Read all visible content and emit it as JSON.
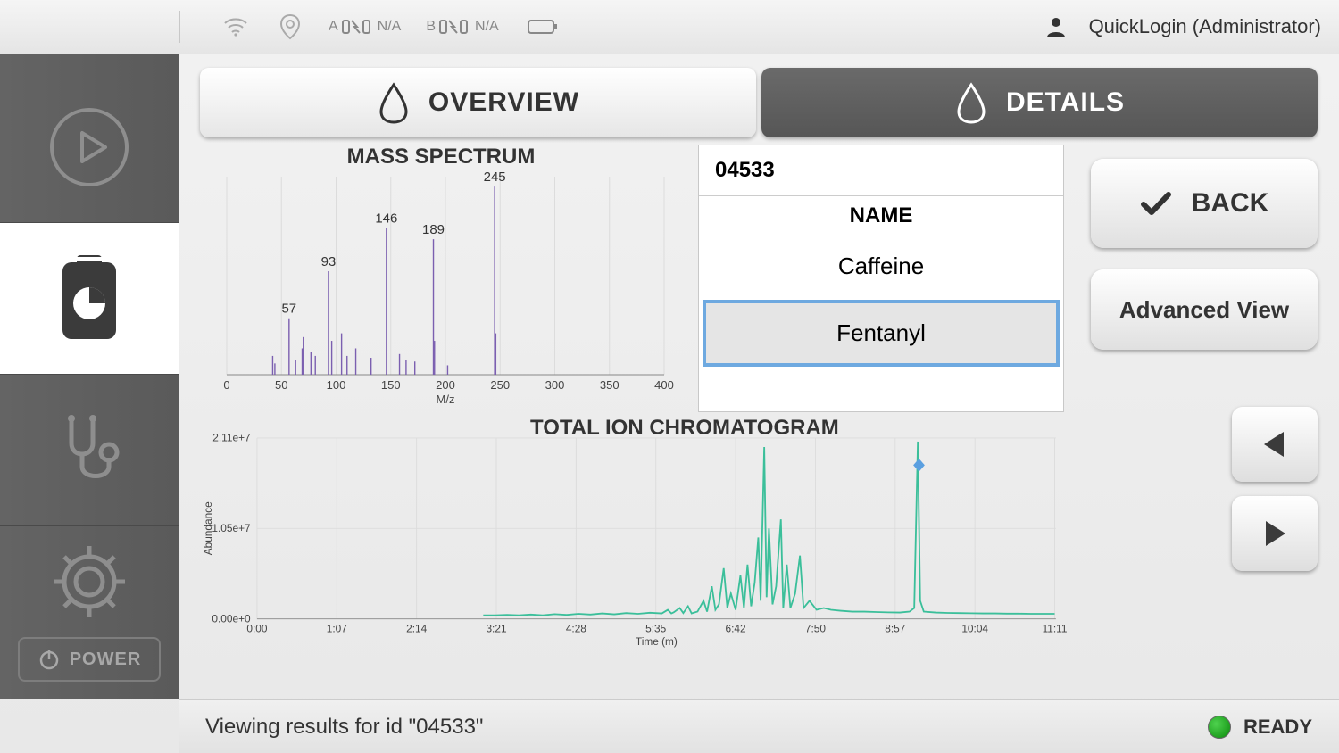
{
  "topbar": {
    "battery_a_letter": "A",
    "battery_a_value": "N/A",
    "battery_b_letter": "B",
    "battery_b_value": "N/A",
    "user_label": "QuickLogin (Administrator)"
  },
  "sidebar": {
    "power_label": "POWER"
  },
  "tabs": {
    "overview": "OVERVIEW",
    "details": "DETAILS"
  },
  "results": {
    "id": "04533",
    "name_header": "NAME",
    "rows": [
      "Caffeine",
      "Fentanyl"
    ],
    "selected_index": 1
  },
  "buttons": {
    "back": "BACK",
    "advanced": "Advanced View"
  },
  "footer": {
    "message": "Viewing results for id \"04533\"",
    "status": "READY",
    "status_color": "#1ea81e"
  },
  "mass_spectrum": {
    "title": "MASS SPECTRUM",
    "xlabel": "M/z",
    "xlim": [
      0,
      400
    ],
    "xtick_step": 50,
    "xticks": [
      0,
      50,
      100,
      150,
      200,
      250,
      300,
      350,
      400
    ],
    "line_color": "#7b5fb0",
    "label_fontsize": 15,
    "axis_fontsize": 13,
    "background_color": "#ffffff00",
    "grid_color": "#dcdcdc",
    "peaks": [
      {
        "mz": 42,
        "rel": 0.1
      },
      {
        "mz": 44,
        "rel": 0.06
      },
      {
        "mz": 57,
        "rel": 0.3,
        "label": "57"
      },
      {
        "mz": 63,
        "rel": 0.08
      },
      {
        "mz": 69,
        "rel": 0.14
      },
      {
        "mz": 70,
        "rel": 0.2
      },
      {
        "mz": 77,
        "rel": 0.12
      },
      {
        "mz": 81,
        "rel": 0.1
      },
      {
        "mz": 93,
        "rel": 0.55,
        "label": "93"
      },
      {
        "mz": 96,
        "rel": 0.18
      },
      {
        "mz": 105,
        "rel": 0.22
      },
      {
        "mz": 110,
        "rel": 0.1
      },
      {
        "mz": 118,
        "rel": 0.14
      },
      {
        "mz": 132,
        "rel": 0.09
      },
      {
        "mz": 146,
        "rel": 0.78,
        "label": "146"
      },
      {
        "mz": 158,
        "rel": 0.11
      },
      {
        "mz": 164,
        "rel": 0.08
      },
      {
        "mz": 172,
        "rel": 0.07
      },
      {
        "mz": 189,
        "rel": 0.72,
        "label": "189"
      },
      {
        "mz": 190,
        "rel": 0.18
      },
      {
        "mz": 202,
        "rel": 0.05
      },
      {
        "mz": 245,
        "rel": 1.0,
        "label": "245"
      },
      {
        "mz": 246,
        "rel": 0.22
      }
    ]
  },
  "tic": {
    "title": "TOTAL ION CHROMATOGRAM",
    "xlabel": "Time (m)",
    "ylabel": "Abundance",
    "line_color": "#3bbf9a",
    "marker_color": "#5a9fe0",
    "background_color": "#ffffff00",
    "grid_color": "#dcdcdc",
    "ymax_label": "2.11e+7",
    "ymid_label": "1.05e+7",
    "ymin_label": "0.00e+0",
    "ymax": 21100000.0,
    "xlim_sec": [
      0,
      671
    ],
    "xticks": [
      {
        "sec": 0,
        "label": "0:00"
      },
      {
        "sec": 67,
        "label": "1:07"
      },
      {
        "sec": 134,
        "label": "2:14"
      },
      {
        "sec": 201,
        "label": "3:21"
      },
      {
        "sec": 268,
        "label": "4:28"
      },
      {
        "sec": 335,
        "label": "5:35"
      },
      {
        "sec": 402,
        "label": "6:42"
      },
      {
        "sec": 469,
        "label": "7:50"
      },
      {
        "sec": 536,
        "label": "8:57"
      },
      {
        "sec": 603,
        "label": "10:04"
      },
      {
        "sec": 670,
        "label": "11:11"
      }
    ],
    "marker_sec": 556,
    "series": [
      [
        190,
        0.02
      ],
      [
        200,
        0.02
      ],
      [
        210,
        0.022
      ],
      [
        220,
        0.02
      ],
      [
        230,
        0.024
      ],
      [
        240,
        0.02
      ],
      [
        250,
        0.026
      ],
      [
        260,
        0.022
      ],
      [
        270,
        0.028
      ],
      [
        280,
        0.024
      ],
      [
        290,
        0.03
      ],
      [
        300,
        0.025
      ],
      [
        310,
        0.032
      ],
      [
        320,
        0.028
      ],
      [
        330,
        0.034
      ],
      [
        340,
        0.03
      ],
      [
        345,
        0.05
      ],
      [
        348,
        0.03
      ],
      [
        350,
        0.036
      ],
      [
        355,
        0.06
      ],
      [
        358,
        0.032
      ],
      [
        362,
        0.07
      ],
      [
        365,
        0.03
      ],
      [
        370,
        0.04
      ],
      [
        375,
        0.1
      ],
      [
        378,
        0.04
      ],
      [
        382,
        0.18
      ],
      [
        385,
        0.05
      ],
      [
        388,
        0.08
      ],
      [
        392,
        0.28
      ],
      [
        395,
        0.06
      ],
      [
        398,
        0.14
      ],
      [
        402,
        0.05
      ],
      [
        406,
        0.24
      ],
      [
        409,
        0.06
      ],
      [
        412,
        0.3
      ],
      [
        415,
        0.07
      ],
      [
        418,
        0.2
      ],
      [
        421,
        0.45
      ],
      [
        423,
        0.1
      ],
      [
        426,
        0.95
      ],
      [
        428,
        0.12
      ],
      [
        430,
        0.5
      ],
      [
        433,
        0.08
      ],
      [
        436,
        0.18
      ],
      [
        440,
        0.55
      ],
      [
        442,
        0.06
      ],
      [
        445,
        0.3
      ],
      [
        448,
        0.06
      ],
      [
        452,
        0.14
      ],
      [
        456,
        0.35
      ],
      [
        459,
        0.06
      ],
      [
        464,
        0.1
      ],
      [
        470,
        0.05
      ],
      [
        476,
        0.06
      ],
      [
        482,
        0.05
      ],
      [
        490,
        0.045
      ],
      [
        500,
        0.04
      ],
      [
        510,
        0.04
      ],
      [
        520,
        0.038
      ],
      [
        530,
        0.036
      ],
      [
        540,
        0.035
      ],
      [
        548,
        0.04
      ],
      [
        552,
        0.06
      ],
      [
        555,
        0.98
      ],
      [
        557,
        0.1
      ],
      [
        560,
        0.04
      ],
      [
        570,
        0.035
      ],
      [
        580,
        0.033
      ],
      [
        590,
        0.032
      ],
      [
        600,
        0.031
      ],
      [
        610,
        0.03
      ],
      [
        620,
        0.03
      ],
      [
        630,
        0.029
      ],
      [
        640,
        0.029
      ],
      [
        650,
        0.028
      ],
      [
        660,
        0.028
      ],
      [
        670,
        0.028
      ]
    ]
  }
}
